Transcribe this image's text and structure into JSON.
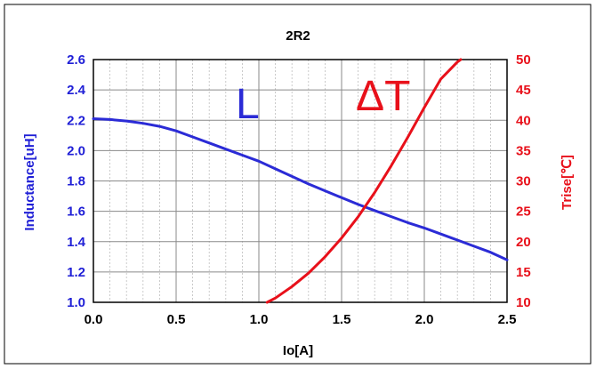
{
  "chart_data": {
    "type": "line",
    "title": "2R2",
    "xlabel": "Io[A]",
    "ylabel_left": "Inductance[uH]",
    "ylabel_right": "Trise[℃]",
    "xlim": [
      0,
      2.5
    ],
    "ylim_left": [
      1.0,
      2.6
    ],
    "ylim_right": [
      10,
      50
    ],
    "x_ticks": [
      "0.0",
      "0.5",
      "1.0",
      "1.5",
      "2.0",
      "2.5"
    ],
    "y_left_ticks": [
      "1.0",
      "1.2",
      "1.4",
      "1.6",
      "1.8",
      "2.0",
      "2.2",
      "2.4",
      "2.6"
    ],
    "y_right_ticks": [
      "10",
      "15",
      "20",
      "25",
      "30",
      "35",
      "40",
      "45",
      "50"
    ],
    "grid": true,
    "series": [
      {
        "name": "L",
        "axis": "left",
        "color": "#2b2bd6",
        "x": [
          0.0,
          0.1,
          0.2,
          0.3,
          0.4,
          0.5,
          0.6,
          0.7,
          0.8,
          0.9,
          1.0,
          1.1,
          1.2,
          1.3,
          1.4,
          1.5,
          1.6,
          1.7,
          1.8,
          1.9,
          2.0,
          2.1,
          2.2,
          2.3,
          2.4,
          2.5
        ],
        "values": [
          2.21,
          2.205,
          2.195,
          2.18,
          2.16,
          2.13,
          2.09,
          2.05,
          2.01,
          1.97,
          1.93,
          1.88,
          1.83,
          1.78,
          1.735,
          1.69,
          1.645,
          1.605,
          1.565,
          1.525,
          1.49,
          1.45,
          1.41,
          1.37,
          1.33,
          1.28
        ]
      },
      {
        "name": "ΔT",
        "axis": "right",
        "color": "#e8101a",
        "x": [
          1.05,
          1.1,
          1.2,
          1.3,
          1.4,
          1.5,
          1.6,
          1.7,
          1.8,
          1.9,
          2.0,
          2.1,
          2.2,
          2.22
        ],
        "values": [
          10,
          10.7,
          12.6,
          14.8,
          17.5,
          20.6,
          24.1,
          28.1,
          32.5,
          37.2,
          42.1,
          46.8,
          49.6,
          50
        ]
      }
    ],
    "series_labels": [
      "L",
      "ΔT"
    ]
  },
  "colors": {
    "left_axis": "#1f1fd6",
    "right_axis": "#e8101a",
    "grid_major": "#8a8a8a",
    "grid_minor": "#bdbdbd"
  }
}
